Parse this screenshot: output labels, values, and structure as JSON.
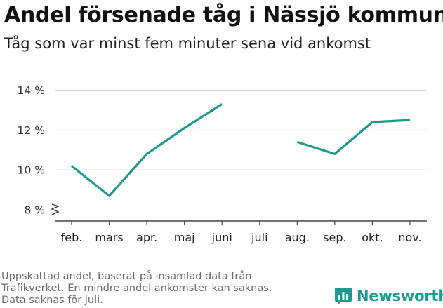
{
  "title": "Andel försenade tåg i Nässjö kommun",
  "subtitle": "Tåg som var minst fem minuter sena vid ankomst",
  "footnote": [
    "Uppskattad andel, baserat på insamlad data från",
    "Trafikverket. En mindre andel ankomster kan saknas.",
    "Data saknas för juli."
  ],
  "brand": {
    "name": "Newsworthy",
    "logo_icon": "newsworthy-chart-icon",
    "color": "#1d9a8f"
  },
  "chart_data": {
    "type": "line",
    "categories": [
      "feb.",
      "mars",
      "apr.",
      "maj",
      "juni",
      "juli",
      "aug.",
      "sep.",
      "okt.",
      "nov."
    ],
    "series": [
      {
        "values": [
          10.2,
          8.7,
          10.8,
          12.1,
          13.3,
          null,
          11.4,
          10.8,
          12.4,
          12.5
        ],
        "color": "#1d9a8f"
      }
    ],
    "yticks": [
      8,
      10,
      12,
      14
    ],
    "ytick_labels": [
      "8 %",
      "10 %",
      "12 %",
      "14 %"
    ],
    "ylim": [
      7.5,
      14.2
    ],
    "y_axis_break": true,
    "grid": true,
    "xlabel": "",
    "ylabel": "",
    "legend": "none"
  }
}
